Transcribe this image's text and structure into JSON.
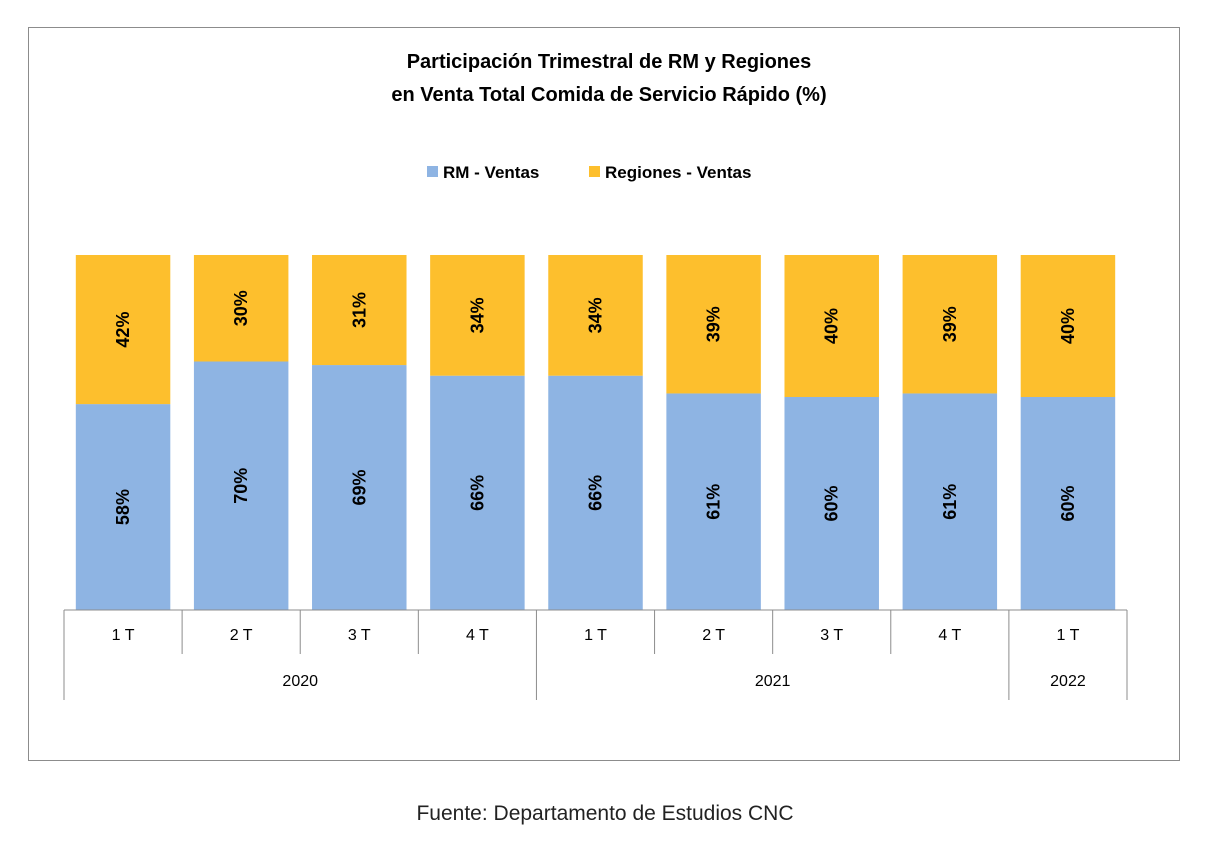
{
  "chart_data": {
    "type": "bar",
    "stacked": true,
    "percent_stacked": true,
    "title_lines": [
      "Participación Trimestral de RM y Regiones",
      "en Venta Total Comida de Servicio Rápido (%)"
    ],
    "legend_position": "top",
    "grid": false,
    "ylim": [
      0,
      100
    ],
    "categories": [
      "1 T",
      "2 T",
      "3 T",
      "4 T",
      "1 T",
      "2 T",
      "3 T",
      "4 T",
      "1 T"
    ],
    "groups": [
      {
        "label": "2020",
        "count": 4
      },
      {
        "label": "2021",
        "count": 4
      },
      {
        "label": "2022",
        "count": 1
      }
    ],
    "series": [
      {
        "name": "RM - Ventas",
        "color": "#8eb4e3",
        "values": [
          58,
          70,
          69,
          66,
          66,
          61,
          60,
          61,
          60
        ]
      },
      {
        "name": "Regiones - Ventas",
        "color": "#fdbf2d",
        "values": [
          42,
          30,
          31,
          34,
          34,
          39,
          40,
          39,
          40
        ]
      }
    ],
    "data_label_suffix": "%"
  },
  "source": "Fuente: Departamento de Estudios CNC"
}
